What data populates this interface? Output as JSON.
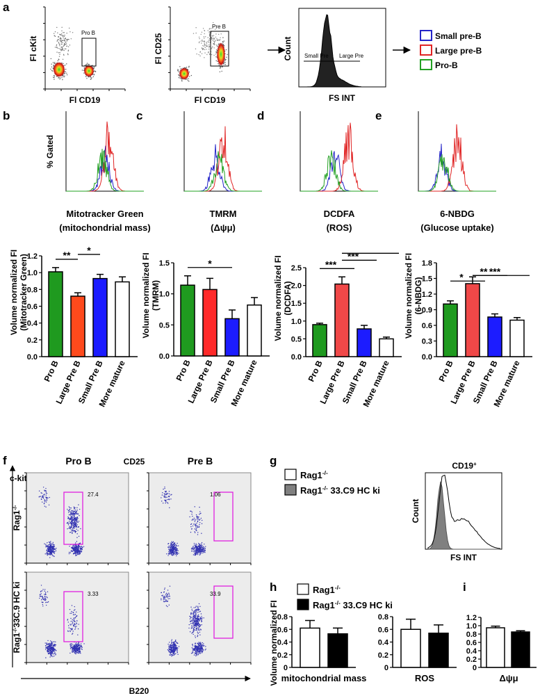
{
  "panel_labels": [
    "a",
    "b",
    "c",
    "d",
    "e",
    "f",
    "g",
    "h",
    "i"
  ],
  "panel_a": {
    "plots": [
      {
        "y_label": "Fl cKit",
        "x_label": "Fl CD19",
        "gate": "Pro B"
      },
      {
        "y_label": "Fl CD25",
        "x_label": "Fl CD19",
        "gate": "Pre B"
      },
      {
        "y_label": "Count",
        "x_label": "FS INT",
        "gates": [
          "Small Pre",
          "Large Pre"
        ]
      }
    ],
    "legend": [
      {
        "name": "Small pre-B",
        "color": "#2424c8"
      },
      {
        "name": "Large pre-B",
        "color": "#e02424"
      },
      {
        "name": "Pro-B",
        "color": "#22a022"
      }
    ]
  },
  "histograms": [
    {
      "y_label": "% Gated",
      "caption": [
        "Mitotracker Green",
        "(mitochondrial mass)"
      ]
    },
    {
      "caption": [
        "TMRM",
        "(Δψμ)"
      ]
    },
    {
      "caption": [
        "DCDFA",
        "(ROS)"
      ]
    },
    {
      "caption": [
        "6-NBDG",
        "(Glucose uptake)"
      ]
    }
  ],
  "bar_charts": [
    {
      "type": "bar",
      "y_label": [
        "Volume normalized FI",
        "(Mitotracker Green)"
      ],
      "categories": [
        "Pro B",
        "Large Pre B",
        "Small Pre B",
        "More mature"
      ],
      "values": [
        1.01,
        0.72,
        0.93,
        0.89
      ],
      "errors": [
        0.05,
        0.04,
        0.05,
        0.06
      ],
      "colors": [
        "#1f9a1f",
        "#ff4a1c",
        "#1c1cff",
        "#ffffff"
      ],
      "ylim": [
        0,
        1.2
      ],
      "yticks": [
        {
          "value": 0,
          "label": "0.0"
        },
        0.2,
        0.4,
        0.6,
        0.8,
        {
          "value": 1,
          "label": "1.0"
        },
        1.2
      ],
      "significance": [
        {
          "label": "**",
          "between": [
            "Pro B",
            "Large Pre B"
          ]
        },
        {
          "label": "*",
          "between": [
            "Large Pre B",
            "Small Pre B"
          ]
        }
      ]
    },
    {
      "type": "bar",
      "y_label": [
        "Volume normalized FI",
        "(TMRM)"
      ],
      "categories": [
        "Pro B",
        "Large Pre B",
        "Small Pre B",
        "More mature"
      ],
      "values": [
        1.14,
        1.07,
        0.6,
        0.82
      ],
      "errors": [
        0.15,
        0.18,
        0.14,
        0.12
      ],
      "colors": [
        "#1f9a1f",
        "#ff2a2a",
        "#1c1cff",
        "#ffffff"
      ],
      "ylim": [
        0,
        1.5
      ],
      "yticks": [
        {
          "value": 0,
          "label": "0.0"
        },
        0.5,
        {
          "value": 1,
          "label": "1.0"
        },
        1.5
      ],
      "significance": [
        {
          "label": "*",
          "between": [
            "Pro B",
            "Small Pre B"
          ]
        }
      ]
    },
    {
      "type": "bar",
      "y_label": [
        "Volume normalized FI",
        "(DCDFA)"
      ],
      "categories": [
        "Pro B",
        "Large Pre B",
        "Small Pre B",
        "More mature"
      ],
      "values": [
        0.9,
        2.04,
        0.78,
        0.5
      ],
      "errors": [
        0.04,
        0.2,
        0.1,
        0.05
      ],
      "colors": [
        "#1f9a1f",
        "#f04848",
        "#1c1cff",
        "#ffffff"
      ],
      "ylim": [
        0,
        2.5
      ],
      "yticks": [
        {
          "value": 0,
          "label": "0.0"
        },
        0.5,
        {
          "value": 1,
          "label": "1.0"
        },
        1.5,
        {
          "value": 2,
          "label": "2.0"
        },
        2.5
      ],
      "significance": [
        {
          "label": "***",
          "between": [
            "Pro B",
            "Large Pre B"
          ]
        },
        {
          "label": "***",
          "between": [
            "Large Pre B",
            "Small Pre B"
          ]
        },
        {
          "label": "",
          "between": [
            "Large Pre B",
            "More mature"
          ]
        }
      ]
    },
    {
      "type": "bar",
      "y_label": [
        "Volume normalized FI",
        "(6-NBDG)"
      ],
      "categories": [
        "Pro B",
        "Large Pre B",
        "Small Pre B",
        "More mature"
      ],
      "values": [
        1.01,
        1.4,
        0.76,
        0.7
      ],
      "errors": [
        0.06,
        0.13,
        0.06,
        0.05
      ],
      "colors": [
        "#1f9a1f",
        "#f04848",
        "#1c1cff",
        "#ffffff"
      ],
      "ylim": [
        0,
        1.8
      ],
      "yticks": [
        {
          "value": 0,
          "label": "0.0"
        },
        0.3,
        0.6,
        0.9,
        1.2,
        1.5,
        1.8
      ],
      "significance": [
        {
          "label": "*",
          "between": [
            "Pro B",
            "Large Pre B"
          ]
        },
        {
          "label": "**",
          "between": [
            "Large Pre B",
            "Small Pre B"
          ]
        },
        {
          "label": "***",
          "between": [
            "Large Pre B",
            "More mature"
          ]
        }
      ]
    }
  ],
  "panel_f": {
    "top_labels": [
      "c-kit",
      "Pro B",
      "CD25",
      "Pre B"
    ],
    "rows": [
      {
        "label": {
          "base": "Rag1",
          "sup": "-/-"
        },
        "gates": [
          27.4,
          1.06
        ]
      },
      {
        "label": {
          "base": "Rag1",
          "sup": "-/-",
          "rest": "33C.9 HC ki"
        },
        "gates": [
          3.33,
          33.9
        ]
      }
    ],
    "x_label": "B220"
  },
  "panel_g": {
    "legend": [
      {
        "base": "Rag1",
        "sup": "-/-",
        "fill": "#ffffff"
      },
      {
        "base": "Rag1",
        "sup": "-/-",
        "rest": " 33.C9 HC ki",
        "fill": "#808080"
      }
    ],
    "title": {
      "base": "CD19",
      "sup": "+"
    },
    "y_label": "Count",
    "x_label": "FS INT"
  },
  "panel_h": {
    "legend": [
      {
        "base": "Rag1",
        "sup": "-/-",
        "fill": "#ffffff"
      },
      {
        "base": "Rag1",
        "sup": "-/-",
        "rest": " 33.C9 HC ki",
        "fill": "#000000"
      }
    ],
    "y_label": "Volume normalized FI",
    "charts": [
      {
        "type": "bar",
        "x_label": "mitochondrial mass",
        "values": [
          0.62,
          0.53
        ],
        "errors": [
          0.12,
          0.09
        ],
        "colors": [
          "#ffffff",
          "#000000"
        ],
        "ylim": [
          0,
          0.8
        ],
        "yticks": [
          0,
          0.2,
          0.4,
          0.6,
          0.8
        ]
      },
      {
        "type": "bar",
        "x_label": "ROS",
        "values": [
          0.6,
          0.54
        ],
        "errors": [
          0.16,
          0.13
        ],
        "colors": [
          "#ffffff",
          "#000000"
        ],
        "ylim": [
          0,
          0.8
        ],
        "yticks": [
          0,
          0.2,
          0.4,
          0.6,
          0.8
        ]
      }
    ]
  },
  "panel_i": {
    "type": "bar",
    "x_label": "Δψμ",
    "values": [
      0.95,
      0.85
    ],
    "errors": [
      0.04,
      0.03
    ],
    "colors": [
      "#ffffff",
      "#000000"
    ],
    "ylim": [
      0,
      1.2
    ],
    "yticks": [
      0,
      0.2,
      0.4,
      0.6,
      0.8,
      {
        "value": 1,
        "label": "1.0"
      },
      1.2
    ]
  }
}
